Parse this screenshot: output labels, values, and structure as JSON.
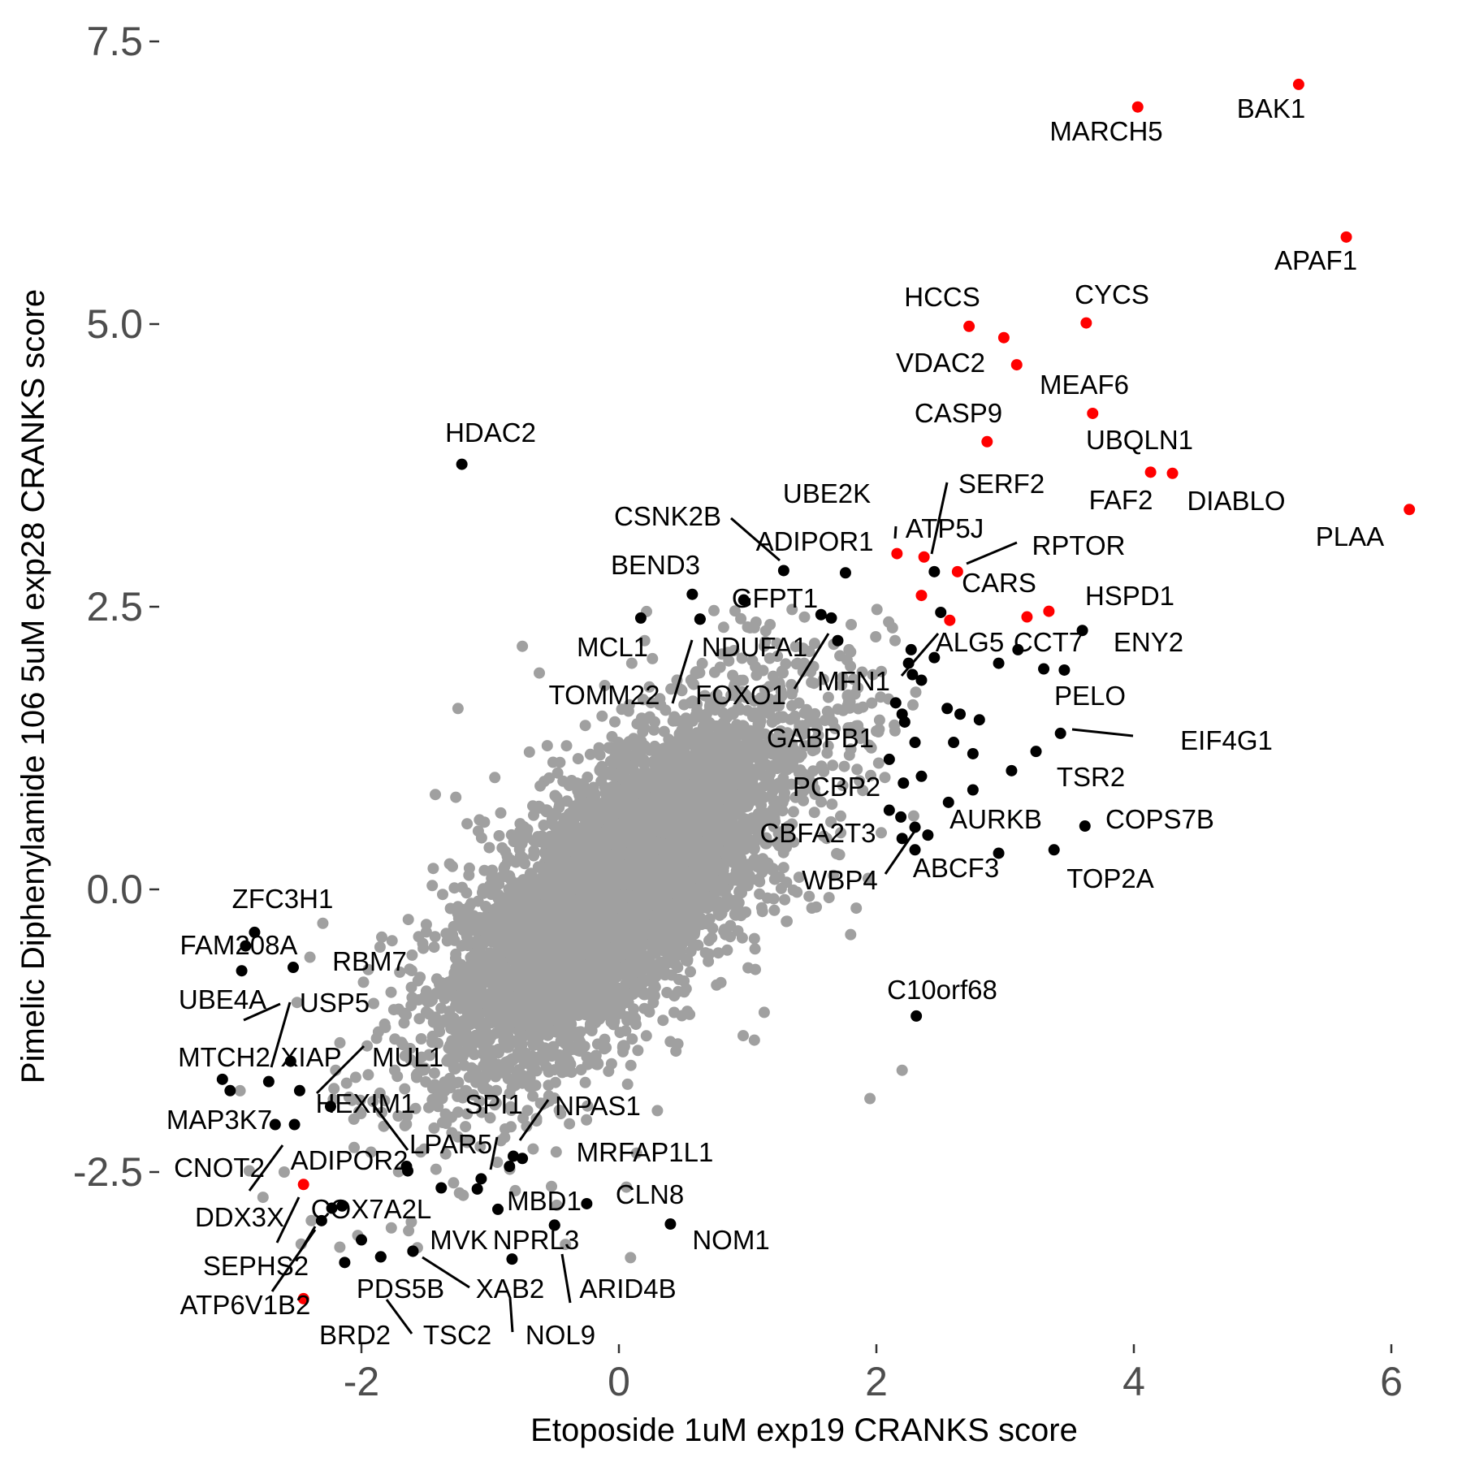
{
  "chart_data": {
    "type": "scatter",
    "xlabel": "Etoposide 1uM exp19 CRANKS score",
    "ylabel": "Pimelic Diphenylamide 106 5uM exp28 CRANKS score",
    "xlim": [
      -3.3,
      6.3
    ],
    "ylim": [
      -4.0,
      7.6
    ],
    "x_ticks": [
      -2,
      0,
      2,
      4,
      6
    ],
    "x_tick_labels": [
      "-2",
      "0",
      "2",
      "4",
      "6"
    ],
    "y_ticks": [
      -2.5,
      0.0,
      2.5,
      5.0,
      7.5
    ],
    "y_tick_labels": [
      "-2.5",
      "0.0",
      "2.5",
      "5.0",
      "7.5"
    ],
    "grid": false,
    "colors": {
      "background": "#a0a0a0",
      "highlight_black": "#000000",
      "highlight_red": "#ff0000",
      "tick_text": "#4d4d4d"
    },
    "background_cloud": {
      "description_series": "all other genes",
      "center": [
        0.0,
        0.0
      ],
      "approx_count": 16000,
      "outliers": [
        [
          -0.75,
          2.15
        ],
        [
          -1.25,
          1.6
        ],
        [
          0.1,
          2.0
        ],
        [
          0.2,
          2.2
        ],
        [
          1.8,
          2.1
        ],
        [
          2.0,
          1.4
        ],
        [
          -2.2,
          -1.6
        ],
        [
          -2.6,
          -2.5
        ],
        [
          2.2,
          -1.6
        ],
        [
          1.95,
          -1.85
        ],
        [
          -2.4,
          -0.6
        ],
        [
          -2.3,
          -0.3
        ],
        [
          -2.5,
          -1.0
        ],
        [
          1.8,
          -0.4
        ]
      ]
    },
    "labeled_points": [
      {
        "gene": "BAK1",
        "x": 5.28,
        "y": 7.12,
        "color": "red"
      },
      {
        "gene": "MARCH5",
        "x": 4.03,
        "y": 6.92,
        "color": "red"
      },
      {
        "gene": "APAF1",
        "x": 5.65,
        "y": 5.77,
        "color": "red"
      },
      {
        "gene": "HCCS",
        "x": 2.72,
        "y": 4.98,
        "color": "red"
      },
      {
        "gene": "CYCS",
        "x": 3.63,
        "y": 5.01,
        "color": "red"
      },
      {
        "gene": "VDAC2",
        "x": 2.99,
        "y": 4.88,
        "color": "red"
      },
      {
        "gene": "MEAF6",
        "x": 3.09,
        "y": 4.64,
        "color": "red"
      },
      {
        "gene": "UBQLN1",
        "x": 3.68,
        "y": 4.21,
        "color": "red"
      },
      {
        "gene": "CASP9",
        "x": 2.86,
        "y": 3.96,
        "color": "red"
      },
      {
        "gene": "FAF2",
        "x": 4.13,
        "y": 3.69,
        "color": "red"
      },
      {
        "gene": "DIABLO",
        "x": 4.3,
        "y": 3.68,
        "color": "red"
      },
      {
        "gene": "PLAA",
        "x": 6.14,
        "y": 3.36,
        "color": "red"
      },
      {
        "gene": "UBE2K",
        "x": 2.16,
        "y": 2.97,
        "color": "red"
      },
      {
        "gene": "ATP5J",
        "x": 2.37,
        "y": 2.94,
        "color": "red"
      },
      {
        "gene": "RPTOR",
        "x": 2.63,
        "y": 2.81,
        "color": "red"
      },
      {
        "gene": "CARS",
        "x": 2.35,
        "y": 2.6,
        "color": "red"
      },
      {
        "gene": "HSPD1",
        "x": 3.34,
        "y": 2.46,
        "color": "red"
      },
      {
        "gene": "ALG5",
        "x": 2.57,
        "y": 2.38,
        "color": "red"
      },
      {
        "gene": "CCT7",
        "x": 3.17,
        "y": 2.41,
        "color": "red"
      },
      {
        "gene": "DDX3X",
        "x": -2.45,
        "y": -2.61,
        "color": "red"
      },
      {
        "gene": "ATP6V1B2",
        "x": -2.45,
        "y": -3.62,
        "color": "red"
      },
      {
        "gene": "HDAC2",
        "x": -1.22,
        "y": 3.76,
        "color": "black"
      },
      {
        "gene": "SERF2",
        "x": 2.45,
        "y": 2.81,
        "color": "black"
      },
      {
        "gene": "CSNK2B",
        "x": 1.28,
        "y": 2.82,
        "color": "black"
      },
      {
        "gene": "ADIPOR1",
        "x": 1.76,
        "y": 2.8,
        "color": "black"
      },
      {
        "gene": "BEND3",
        "x": 0.57,
        "y": 2.61,
        "color": "black"
      },
      {
        "gene": "GFPT1",
        "x": 0.97,
        "y": 2.56,
        "color": "black"
      },
      {
        "gene": "MCL1",
        "x": 0.17,
        "y": 2.4,
        "color": "black"
      },
      {
        "gene": "NDUFA1",
        "x": 0.63,
        "y": 2.39,
        "color": "black"
      },
      {
        "gene": "TOMM22",
        "x": 0.63,
        "y": 2.39,
        "color": "black"
      },
      {
        "gene": "FOXO1",
        "x": 1.57,
        "y": 2.43,
        "color": "black"
      },
      {
        "gene": "MFN1",
        "x": 2.27,
        "y": 2.12,
        "color": "black"
      },
      {
        "gene": "ENY2",
        "x": 3.6,
        "y": 2.29,
        "color": "black"
      },
      {
        "gene": "PELO",
        "x": 3.46,
        "y": 1.94,
        "color": "black"
      },
      {
        "gene": "EIF4G1",
        "x": 3.43,
        "y": 1.38,
        "color": "black"
      },
      {
        "gene": "TSR2",
        "x": 3.24,
        "y": 1.22,
        "color": "black"
      },
      {
        "gene": "GABPB1",
        "x": 2.22,
        "y": 1.48,
        "color": "black"
      },
      {
        "gene": "PCBP2",
        "x": 2.21,
        "y": 0.94,
        "color": "black"
      },
      {
        "gene": "AURKB",
        "x": 2.56,
        "y": 0.77,
        "color": "black"
      },
      {
        "gene": "COPS7B",
        "x": 3.62,
        "y": 0.56,
        "color": "black"
      },
      {
        "gene": "CBFA2T3",
        "x": 2.19,
        "y": 0.64,
        "color": "black"
      },
      {
        "gene": "TOP2A",
        "x": 3.38,
        "y": 0.35,
        "color": "black"
      },
      {
        "gene": "ABCF3",
        "x": 2.4,
        "y": 0.48,
        "color": "black"
      },
      {
        "gene": "WBP4",
        "x": 2.3,
        "y": 0.35,
        "color": "black"
      },
      {
        "gene": "C10orf68",
        "x": 2.31,
        "y": -1.12,
        "color": "black"
      },
      {
        "gene": "ZFC3H1",
        "x": -2.83,
        "y": -0.38,
        "color": "black"
      },
      {
        "gene": "FAM208A",
        "x": -2.9,
        "y": -0.5,
        "color": "black"
      },
      {
        "gene": "RBM7",
        "x": -2.53,
        "y": -0.69,
        "color": "black"
      },
      {
        "gene": "UBE4A",
        "x": -2.93,
        "y": -0.72,
        "color": "black"
      },
      {
        "gene": "USP5",
        "x": -2.55,
        "y": -1.52,
        "color": "black"
      },
      {
        "gene": "MTCH2",
        "x": -3.08,
        "y": -1.68,
        "color": "black"
      },
      {
        "gene": "XIAP",
        "x": -2.72,
        "y": -1.7,
        "color": "black"
      },
      {
        "gene": "MUL1",
        "x": -2.24,
        "y": -1.92,
        "color": "black"
      },
      {
        "gene": "MAP3K7",
        "x": -3.02,
        "y": -1.78,
        "color": "black"
      },
      {
        "gene": "HEXIM1",
        "x": -2.48,
        "y": -1.78,
        "color": "black"
      },
      {
        "gene": "CNOT2",
        "x": -2.67,
        "y": -2.08,
        "color": "black"
      },
      {
        "gene": "ADIPOR2",
        "x": -2.52,
        "y": -2.08,
        "color": "black"
      },
      {
        "gene": "LPAR5",
        "x": -1.64,
        "y": -2.49,
        "color": "black"
      },
      {
        "gene": "SPI1",
        "x": -1.07,
        "y": -2.56,
        "color": "black"
      },
      {
        "gene": "NPAS1",
        "x": -0.75,
        "y": -2.38,
        "color": "black"
      },
      {
        "gene": "MRFAP1L1",
        "x": -0.82,
        "y": -2.36,
        "color": "black"
      },
      {
        "gene": "MBD1",
        "x": -0.94,
        "y": -2.83,
        "color": "black"
      },
      {
        "gene": "CLN8",
        "x": -0.25,
        "y": -2.78,
        "color": "black"
      },
      {
        "gene": "COX7A2L",
        "x": -2.23,
        "y": -2.82,
        "color": "black"
      },
      {
        "gene": "SEPHS2",
        "x": -2.31,
        "y": -2.93,
        "color": "black"
      },
      {
        "gene": "NOM1",
        "x": 0.4,
        "y": -2.96,
        "color": "black"
      },
      {
        "gene": "MVK",
        "x": -1.6,
        "y": -3.2,
        "color": "black"
      },
      {
        "gene": "NPRL3",
        "x": -0.5,
        "y": -2.97,
        "color": "black"
      },
      {
        "gene": "ARID4B",
        "x": -0.5,
        "y": -2.97,
        "color": "black"
      },
      {
        "gene": "XAB2",
        "x": -1.6,
        "y": -3.2,
        "color": "black"
      },
      {
        "gene": "PDS5B",
        "x": -1.85,
        "y": -3.25,
        "color": "black"
      },
      {
        "gene": "NOL9",
        "x": -0.83,
        "y": -3.27,
        "color": "black"
      },
      {
        "gene": "TSC2",
        "x": -1.85,
        "y": -3.25,
        "color": "black"
      },
      {
        "gene": "BRD2",
        "x": -2.13,
        "y": -3.3,
        "color": "black"
      }
    ],
    "extra_highlight_points": [
      {
        "x": 3.1,
        "y": 2.12,
        "color": "black"
      },
      {
        "x": 2.28,
        "y": 1.9,
        "color": "black"
      },
      {
        "x": 2.95,
        "y": 2.0,
        "color": "black"
      },
      {
        "x": 3.3,
        "y": 1.95,
        "color": "black"
      },
      {
        "x": 2.5,
        "y": 2.45,
        "color": "black"
      },
      {
        "x": 2.35,
        "y": 1.85,
        "color": "black"
      },
      {
        "x": 2.65,
        "y": 1.55,
        "color": "black"
      },
      {
        "x": 2.8,
        "y": 1.5,
        "color": "black"
      },
      {
        "x": 2.6,
        "y": 1.3,
        "color": "black"
      },
      {
        "x": 2.75,
        "y": 1.2,
        "color": "black"
      },
      {
        "x": 2.35,
        "y": 1.0,
        "color": "black"
      },
      {
        "x": 2.1,
        "y": 1.15,
        "color": "black"
      },
      {
        "x": 2.15,
        "y": 1.65,
        "color": "black"
      },
      {
        "x": 2.45,
        "y": 2.05,
        "color": "black"
      },
      {
        "x": 1.65,
        "y": 2.4,
        "color": "black"
      },
      {
        "x": 1.7,
        "y": 2.2,
        "color": "black"
      },
      {
        "x": 2.2,
        "y": 1.55,
        "color": "black"
      },
      {
        "x": 2.3,
        "y": 1.3,
        "color": "black"
      },
      {
        "x": 2.75,
        "y": 0.88,
        "color": "black"
      },
      {
        "x": 3.05,
        "y": 1.05,
        "color": "black"
      },
      {
        "x": 2.1,
        "y": 0.7,
        "color": "black"
      },
      {
        "x": 2.3,
        "y": 0.55,
        "color": "black"
      },
      {
        "x": 2.95,
        "y": 0.32,
        "color": "black"
      },
      {
        "x": 2.2,
        "y": 0.45,
        "color": "black"
      },
      {
        "x": 2.55,
        "y": 1.6,
        "color": "black"
      },
      {
        "x": 2.25,
        "y": 2.0,
        "color": "black"
      },
      {
        "x": -1.1,
        "y": -2.65,
        "color": "black"
      },
      {
        "x": -0.85,
        "y": -2.45,
        "color": "black"
      },
      {
        "x": -1.65,
        "y": -2.45,
        "color": "black"
      },
      {
        "x": -2.0,
        "y": -3.1,
        "color": "black"
      },
      {
        "x": -2.15,
        "y": -2.8,
        "color": "black"
      },
      {
        "x": -1.38,
        "y": -2.64,
        "color": "black"
      }
    ]
  }
}
